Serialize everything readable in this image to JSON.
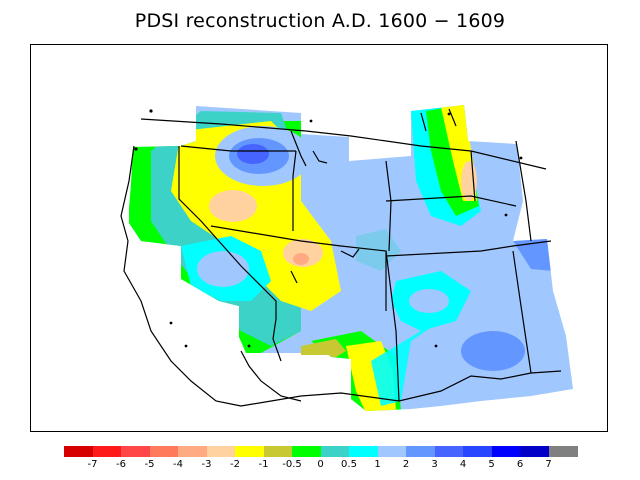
{
  "title": "PDSI reconstruction A.D. 1600 − 1609",
  "legend": {
    "labels": [
      "-7",
      "-6",
      "-5",
      "-4",
      "-3",
      "-2",
      "-1",
      "-0.5",
      "0",
      "0.5",
      "1",
      "2",
      "3",
      "4",
      "5",
      "6",
      "7"
    ],
    "colors": [
      "#d70000",
      "#ff1a1a",
      "#ff4747",
      "#ff7a5a",
      "#ffaa82",
      "#ffd2a0",
      "#ffff00",
      "#c8c832",
      "#00ff00",
      "#3cd2c8",
      "#00ffff",
      "#a0c8ff",
      "#6496ff",
      "#4664ff",
      "#2846ff",
      "#0000ff",
      "#0000c8",
      "#808080"
    ]
  },
  "map": {
    "region": "Western United States",
    "variable": "PDSI"
  }
}
